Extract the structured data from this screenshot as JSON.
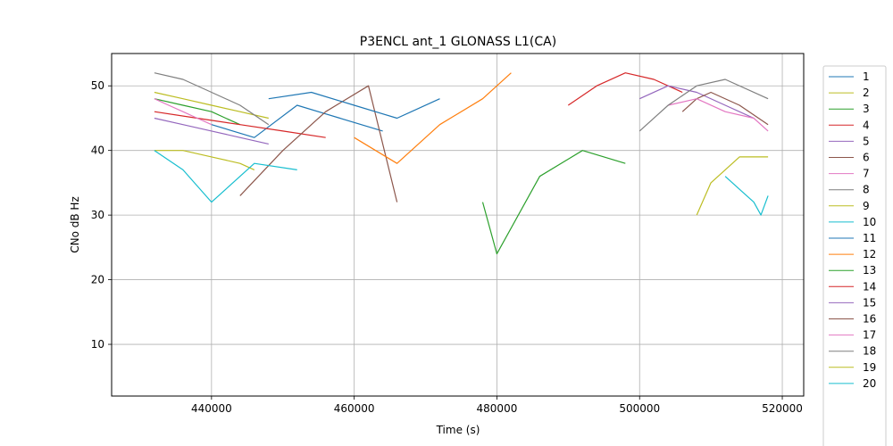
{
  "chart_data": {
    "type": "line",
    "title": "P3ENCL ant_1 GLONASS L1(CA)",
    "xlabel": "Time (s)",
    "ylabel": "CNo dB Hz",
    "xlim": [
      426000,
      523000
    ],
    "ylim": [
      2,
      55
    ],
    "xticks": [
      440000,
      460000,
      480000,
      500000,
      520000
    ],
    "xtick_labels": [
      "440000",
      "460000",
      "480000",
      "500000",
      "520000"
    ],
    "yticks": [
      10,
      20,
      30,
      40,
      50
    ],
    "ytick_labels": [
      "10",
      "20",
      "30",
      "40",
      "50"
    ],
    "grid": true,
    "legend_position": "right, outside plot",
    "colors": [
      "#1f77b4",
      "#bcbd22",
      "#2ca02c",
      "#d62728",
      "#9467bd",
      "#8c564b",
      "#e377c2",
      "#7f7f7f",
      "#bcbd22",
      "#17becf",
      "#1f77b4",
      "#ff7f0e",
      "#2ca02c",
      "#d62728",
      "#9467bd",
      "#8c564b",
      "#e377c2",
      "#7f7f7f",
      "#bcbd22",
      "#17becf"
    ],
    "series": [
      {
        "name": "1",
        "x": [
          440000,
          446000,
          452000,
          458000,
          464000
        ],
        "y": [
          44,
          42,
          47,
          45,
          43
        ]
      },
      {
        "name": "2",
        "x": [
          432000,
          436000,
          440000,
          444000,
          448000
        ],
        "y": [
          49,
          48,
          47,
          46,
          45
        ]
      },
      {
        "name": "3",
        "x": [
          432000,
          436000,
          440000,
          442000,
          444000
        ],
        "y": [
          48,
          47,
          46,
          45,
          44
        ]
      },
      {
        "name": "4",
        "x": [
          432000,
          438000,
          444000,
          450000,
          456000
        ],
        "y": [
          46,
          45,
          44,
          43,
          42
        ]
      },
      {
        "name": "5",
        "x": [
          432000,
          436000,
          440000,
          444000,
          448000
        ],
        "y": [
          45,
          44,
          43,
          42,
          41
        ]
      },
      {
        "name": "6",
        "x": [
          444000,
          450000,
          456000,
          462000,
          466000
        ],
        "y": [
          33,
          40,
          46,
          50,
          32
        ]
      },
      {
        "name": "7",
        "x": [
          432000,
          434000,
          436000,
          438000,
          440000
        ],
        "y": [
          48,
          47,
          46,
          45,
          44
        ]
      },
      {
        "name": "8",
        "x": [
          432000,
          436000,
          440000,
          444000,
          448000
        ],
        "y": [
          52,
          51,
          49,
          47,
          44
        ]
      },
      {
        "name": "9",
        "x": [
          432000,
          436000,
          440000,
          444000,
          446000
        ],
        "y": [
          40,
          40,
          39,
          38,
          37
        ]
      },
      {
        "name": "10",
        "x": [
          432000,
          436000,
          440000,
          446000,
          452000
        ],
        "y": [
          40,
          37,
          32,
          38,
          37
        ]
      },
      {
        "name": "11",
        "x": [
          448000,
          454000,
          460000,
          466000,
          472000
        ],
        "y": [
          48,
          49,
          47,
          45,
          48
        ]
      },
      {
        "name": "12",
        "x": [
          460000,
          466000,
          472000,
          478000,
          482000
        ],
        "y": [
          42,
          38,
          44,
          48,
          52
        ]
      },
      {
        "name": "13",
        "x": [
          478000,
          480000,
          486000,
          492000,
          498000
        ],
        "y": [
          32,
          24,
          36,
          40,
          38
        ]
      },
      {
        "name": "14",
        "x": [
          490000,
          494000,
          498000,
          502000,
          506000
        ],
        "y": [
          47,
          50,
          52,
          51,
          49
        ]
      },
      {
        "name": "15",
        "x": [
          500000,
          504000,
          508000,
          512000,
          516000
        ],
        "y": [
          48,
          50,
          49,
          47,
          45
        ]
      },
      {
        "name": "16",
        "x": [
          506000,
          508000,
          510000,
          514000,
          518000
        ],
        "y": [
          46,
          48,
          49,
          47,
          44
        ]
      },
      {
        "name": "17",
        "x": [
          504000,
          508000,
          512000,
          516000,
          518000
        ],
        "y": [
          47,
          48,
          46,
          45,
          43
        ]
      },
      {
        "name": "18",
        "x": [
          500000,
          504000,
          508000,
          512000,
          518000
        ],
        "y": [
          43,
          47,
          50,
          51,
          48
        ]
      },
      {
        "name": "19",
        "x": [
          508000,
          510000,
          512000,
          514000,
          518000
        ],
        "y": [
          30,
          35,
          37,
          39,
          39
        ]
      },
      {
        "name": "20",
        "x": [
          512000,
          514000,
          516000,
          517000,
          518000
        ],
        "y": [
          36,
          34,
          32,
          30,
          33
        ]
      }
    ]
  }
}
